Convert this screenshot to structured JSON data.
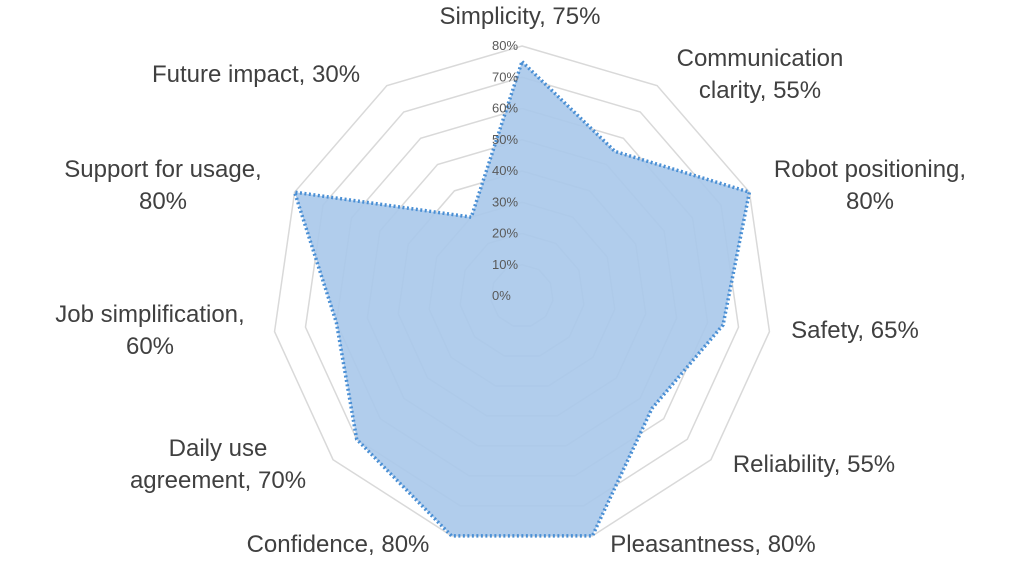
{
  "chart_data": {
    "type": "radar",
    "title": "",
    "categories": [
      "Simplicity",
      "Communication clarity",
      "Robot positioning",
      "Safety",
      "Reliability",
      "Pleasantness",
      "Confidence",
      "Daily use agreement",
      "Job simplification",
      "Support for usage",
      "Future impact"
    ],
    "data_labels": [
      [
        "Simplicity, 75%"
      ],
      [
        "Communication",
        "clarity, 55%"
      ],
      [
        "Robot positioning,",
        "80%"
      ],
      [
        "Safety, 65%"
      ],
      [
        "Reliability, 55%"
      ],
      [
        "Pleasantness, 80%"
      ],
      [
        "Confidence, 80%"
      ],
      [
        "Daily use",
        "agreement, 70%"
      ],
      [
        "Job simplification,",
        "60%"
      ],
      [
        "Support for usage,",
        "80%"
      ],
      [
        "Future impact, 30%"
      ]
    ],
    "series": [
      {
        "values": [
          75,
          55,
          80,
          65,
          55,
          80,
          80,
          70,
          60,
          80,
          30
        ]
      }
    ],
    "rlim": [
      0,
      80
    ],
    "ticks": [
      "0%",
      "10%",
      "20%",
      "30%",
      "40%",
      "50%",
      "60%",
      "70%",
      "80%"
    ],
    "grid": true,
    "legend": "none",
    "colors": {
      "fill": "#a9c8ea",
      "line": "#4a8fd4",
      "grid": "#d9d9d9",
      "text": "#404040",
      "tick_text": "#595959"
    }
  }
}
